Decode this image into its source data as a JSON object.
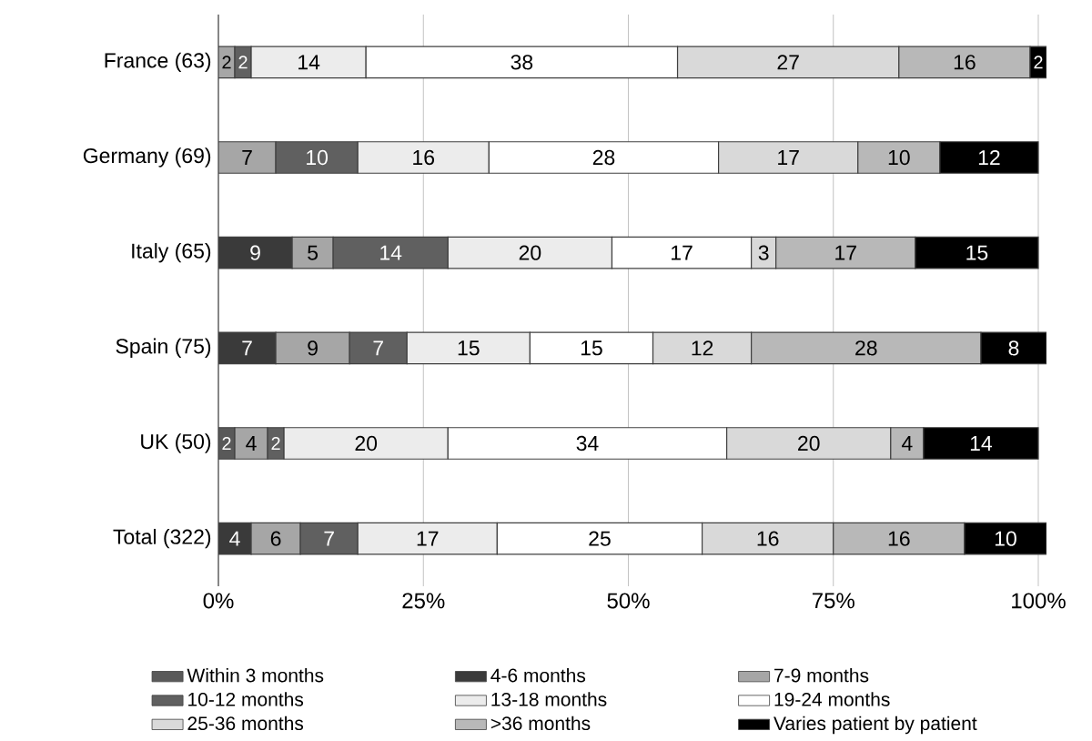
{
  "chart_data": {
    "type": "bar",
    "orientation": "horizontal",
    "stacked": true,
    "data_labels": true,
    "grid": "x",
    "legend": "bottom",
    "categories": [
      "France (63)",
      "Germany (69)",
      "Italy (65)",
      "Spain (75)",
      "UK (50)",
      "Total (322)"
    ],
    "xlim": [
      0,
      101
    ],
    "xticks": [
      {
        "value": 0,
        "label": "0%"
      },
      {
        "value": 25,
        "label": "25%"
      },
      {
        "value": 50,
        "label": "50%"
      },
      {
        "value": 75,
        "label": "75%"
      },
      {
        "value": 100,
        "label": "100%"
      }
    ],
    "series": [
      {
        "name": "Within 3 months",
        "color": "#595959",
        "values": [
          null,
          null,
          null,
          null,
          2,
          null
        ]
      },
      {
        "name": "4-6 months",
        "color": "#3a3a3a",
        "values": [
          null,
          null,
          9,
          7,
          null,
          4
        ]
      },
      {
        "name": "7-9 months",
        "color": "#a6a6a6",
        "values": [
          2,
          7,
          5,
          9,
          4,
          6
        ]
      },
      {
        "name": "10-12 months",
        "color": "#606060",
        "values": [
          2,
          10,
          14,
          7,
          2,
          7
        ]
      },
      {
        "name": "13-18 months",
        "color": "#ececec",
        "values": [
          14,
          16,
          20,
          15,
          20,
          17
        ]
      },
      {
        "name": "19-24 months",
        "color": "#ffffff",
        "values": [
          38,
          28,
          17,
          15,
          34,
          25
        ]
      },
      {
        "name": "25-36 months",
        "color": "#d9d9d9",
        "values": [
          27,
          17,
          3,
          12,
          20,
          16
        ]
      },
      {
        "name": ">36 months",
        "color": "#b8b8b8",
        "values": [
          16,
          10,
          17,
          28,
          4,
          16
        ]
      },
      {
        "name": "Varies patient by patient",
        "color": "#000000",
        "values": [
          2,
          12,
          15,
          8,
          14,
          10
        ]
      }
    ]
  }
}
